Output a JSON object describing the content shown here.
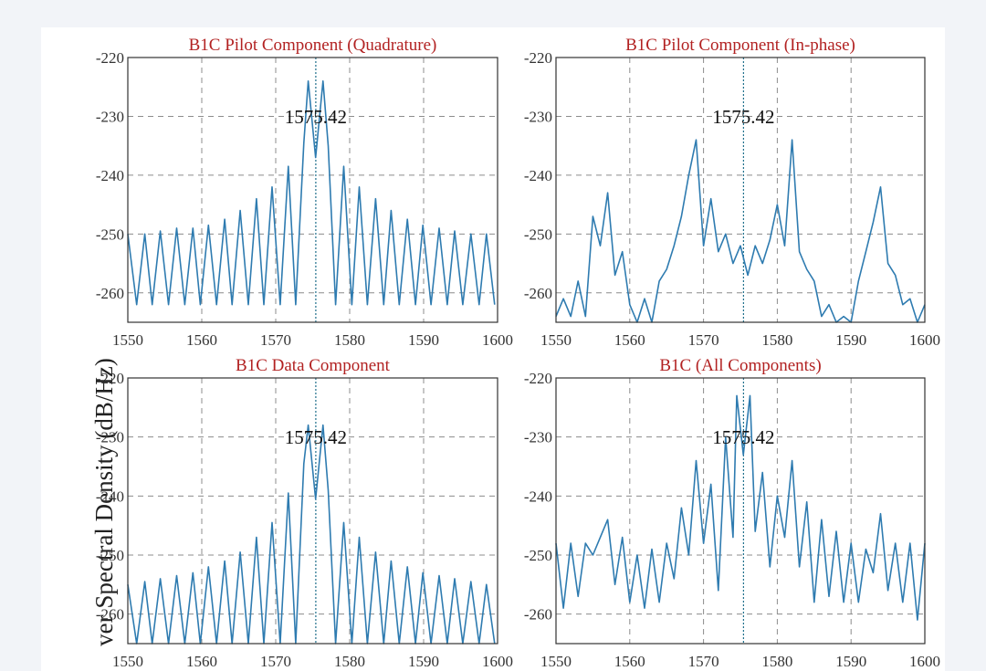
{
  "figure": {
    "ylabel": "ver Spectral Density  (dB/Hz)"
  },
  "chart_data": [
    {
      "type": "line",
      "title": "B1C Pilot Component (Quadrature)",
      "xlim": [
        1550,
        1600
      ],
      "ylim": [
        -265,
        -220
      ],
      "xticks": [
        "1550",
        "1560",
        "1570",
        "1580",
        "1590",
        "1600"
      ],
      "yticks": [
        "-220",
        "-230",
        "-240",
        "-250",
        "-260"
      ],
      "grid": true,
      "marker_x": 1575.42,
      "annotation": "1575.42",
      "series": [
        {
          "color": "#2e7bb0",
          "x": [
            1550,
            1551.2,
            1552.3,
            1553.3,
            1554.4,
            1555.5,
            1556.6,
            1557.7,
            1558.8,
            1559.8,
            1560.9,
            1562,
            1563.1,
            1564.1,
            1565.2,
            1566.3,
            1567.4,
            1568.4,
            1569.5,
            1570.6,
            1571.7,
            1572.7,
            1573.8,
            1574.4,
            1575.4,
            1576.4,
            1577.1,
            1578.1,
            1579.2,
            1580.3,
            1581.3,
            1582.4,
            1583.5,
            1584.6,
            1585.6,
            1586.7,
            1587.8,
            1588.9,
            1589.9,
            1591,
            1592.1,
            1593.2,
            1594.2,
            1595.3,
            1596.4,
            1597.5,
            1598.5,
            1599.6
          ],
          "y": [
            -250,
            -262,
            -250,
            -262,
            -249.5,
            -262,
            -249,
            -262,
            -249,
            -262,
            -248.5,
            -262,
            -247.5,
            -262,
            -246,
            -262,
            -244,
            -262,
            -242,
            -262,
            -238.5,
            -262,
            -234.5,
            -224,
            -237,
            -224,
            -235,
            -262,
            -238.5,
            -262,
            -242,
            -262,
            -244,
            -262,
            -246,
            -262,
            -247.5,
            -262,
            -248.5,
            -262,
            -249,
            -262,
            -249.5,
            -262,
            -250,
            -262,
            -250,
            -262
          ]
        }
      ]
    },
    {
      "type": "line",
      "title": "B1C Pilot Component (In-phase)",
      "xlim": [
        1550,
        1600
      ],
      "ylim": [
        -265,
        -220
      ],
      "xticks": [
        "1550",
        "1560",
        "1570",
        "1580",
        "1590",
        "1600"
      ],
      "yticks": [
        "-220",
        "-230",
        "-240",
        "-250",
        "-260"
      ],
      "grid": true,
      "marker_x": 1575.42,
      "annotation": "1575.42",
      "series": [
        {
          "color": "#2e7bb0",
          "x": [
            1550,
            1551,
            1552,
            1553,
            1554,
            1555,
            1556,
            1557,
            1558,
            1559,
            1560,
            1561,
            1562,
            1563,
            1564,
            1565,
            1566,
            1567,
            1568,
            1569,
            1570,
            1571,
            1572,
            1573,
            1574,
            1575,
            1576,
            1577,
            1578,
            1579,
            1580,
            1581,
            1582,
            1583,
            1584,
            1585,
            1586,
            1587,
            1588,
            1589,
            1590,
            1591,
            1592,
            1593,
            1594,
            1595,
            1596,
            1597,
            1598,
            1599,
            1600
          ],
          "y": [
            -264,
            -261,
            -264,
            -258,
            -264,
            -247,
            -252,
            -243,
            -257,
            -253,
            -262,
            -265,
            -261,
            -265,
            -258,
            -256,
            -252,
            -247,
            -240,
            -234,
            -252,
            -244,
            -253,
            -250,
            -255,
            -252,
            -257,
            -252,
            -255,
            -251,
            -245,
            -252,
            -234,
            -253,
            -256,
            -258,
            -264,
            -262,
            -265,
            -264,
            -265,
            -258,
            -253,
            -248,
            -242,
            -255,
            -257,
            -262,
            -261,
            -265,
            -262
          ]
        }
      ]
    },
    {
      "type": "line",
      "title": "B1C Data Component",
      "xlim": [
        1550,
        1600
      ],
      "ylim": [
        -265,
        -220
      ],
      "xticks": [
        "1550",
        "1560",
        "1570",
        "1580",
        "1590",
        "1600"
      ],
      "yticks": [
        "-220",
        "-230",
        "-240",
        "-250",
        "-260"
      ],
      "grid": true,
      "marker_x": 1575.42,
      "annotation": "1575.42",
      "series": [
        {
          "color": "#2e7bb0",
          "x": [
            1550,
            1551.2,
            1552.3,
            1553.3,
            1554.4,
            1555.5,
            1556.6,
            1557.7,
            1558.8,
            1559.8,
            1560.9,
            1562,
            1563.1,
            1564.1,
            1565.2,
            1566.3,
            1567.4,
            1568.4,
            1569.5,
            1570.6,
            1571.7,
            1572.7,
            1573.8,
            1574.4,
            1575.4,
            1576.4,
            1577.1,
            1578.1,
            1579.2,
            1580.3,
            1581.3,
            1582.4,
            1583.5,
            1584.6,
            1585.6,
            1586.7,
            1587.8,
            1588.9,
            1589.9,
            1591,
            1592.1,
            1593.2,
            1594.2,
            1595.3,
            1596.4,
            1597.5,
            1598.5,
            1599.6
          ],
          "y": [
            -255,
            -265,
            -254.5,
            -265,
            -254,
            -265,
            -253.5,
            -265,
            -253,
            -265,
            -252,
            -265,
            -251,
            -265,
            -249.5,
            -265,
            -247,
            -265,
            -244.5,
            -265,
            -239.5,
            -265,
            -234.5,
            -228,
            -240.5,
            -228,
            -239,
            -265,
            -244.5,
            -265,
            -247,
            -265,
            -249.5,
            -265,
            -251,
            -265,
            -252,
            -265,
            -253,
            -265,
            -253.5,
            -265,
            -254,
            -265,
            -254.5,
            -265,
            -255,
            -265
          ]
        }
      ]
    },
    {
      "type": "line",
      "title": "B1C (All Components)",
      "xlim": [
        1550,
        1600
      ],
      "ylim": [
        -265,
        -220
      ],
      "xticks": [
        "1550",
        "1560",
        "1570",
        "1580",
        "1590",
        "1600"
      ],
      "yticks": [
        "-220",
        "-230",
        "-240",
        "-250",
        "-260"
      ],
      "grid": true,
      "marker_x": 1575.42,
      "annotation": "1575.42",
      "series": [
        {
          "color": "#2e7bb0",
          "x": [
            1550,
            1551,
            1552,
            1553,
            1554,
            1555,
            1556,
            1557,
            1558,
            1559,
            1560,
            1561,
            1562,
            1563,
            1564,
            1565,
            1566,
            1567,
            1568,
            1569,
            1570,
            1571,
            1572,
            1573,
            1574,
            1574.5,
            1575.4,
            1576.3,
            1577,
            1578,
            1579,
            1580,
            1581,
            1582,
            1583,
            1584,
            1585,
            1586,
            1587,
            1588,
            1589,
            1590,
            1591,
            1592,
            1593,
            1594,
            1595,
            1596,
            1597,
            1598,
            1599,
            1600
          ],
          "y": [
            -248,
            -259,
            -248,
            -257,
            -248,
            -250,
            -247,
            -244,
            -255,
            -247,
            -258,
            -250,
            -259,
            -249,
            -258,
            -248,
            -254,
            -242,
            -250,
            -234,
            -248,
            -238,
            -256,
            -230,
            -247,
            -223,
            -233,
            -223,
            -246,
            -236,
            -252,
            -240,
            -247,
            -234,
            -252,
            -241,
            -258,
            -244,
            -257,
            -246,
            -258,
            -248,
            -258,
            -249,
            -253,
            -243,
            -256,
            -248,
            -258,
            -248,
            -261,
            -248
          ]
        }
      ]
    }
  ]
}
